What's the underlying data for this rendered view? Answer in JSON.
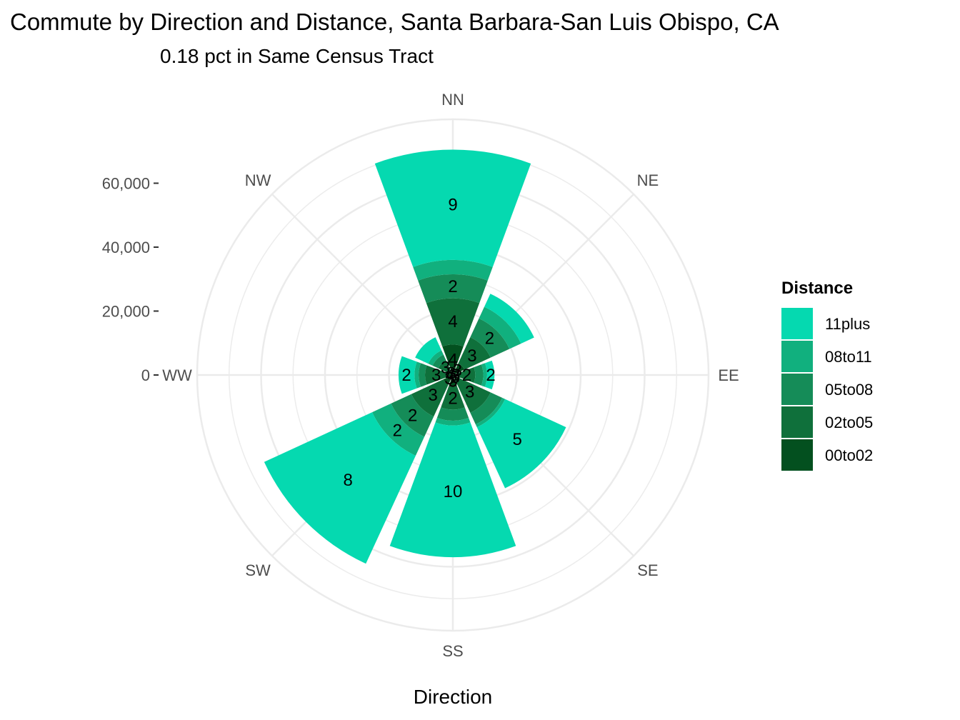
{
  "chart_data": {
    "type": "bar",
    "polar": true,
    "title": "Commute by Direction and Distance, Santa Barbara-San Luis Obispo, CA",
    "subtitle": "0.18 pct in Same Census Tract",
    "xlabel": "Direction",
    "ylabel": "",
    "categories": [
      "NN",
      "NE",
      "EE",
      "SE",
      "SS",
      "SW",
      "WW",
      "NW"
    ],
    "y_ticks": [
      0,
      20000,
      40000,
      60000
    ],
    "y_tick_labels": [
      "0",
      "20,000",
      "40,000",
      "60,000"
    ],
    "ylim": [
      0,
      80000
    ],
    "stack_order": [
      "00to02",
      "02to05",
      "05to08",
      "08to11",
      "11plus"
    ],
    "series": [
      {
        "name": "00to02",
        "color": "#03501f",
        "values": [
          9500,
          4000,
          1700,
          2000,
          3800,
          3300,
          1700,
          1500
        ],
        "labels": [
          "4",
          "3",
          "3",
          "3",
          "3",
          "3",
          "4",
          "3"
        ]
      },
      {
        "name": "02to05",
        "color": "#0f703b",
        "values": [
          14500,
          9000,
          5300,
          11000,
          7000,
          11000,
          7000,
          3500
        ],
        "labels": [
          "4",
          "3",
          "2",
          "3",
          "2",
          "3",
          "3",
          "3"
        ]
      },
      {
        "name": "05to08",
        "color": "#158c58",
        "values": [
          7500,
          6500,
          2500,
          4000,
          3500,
          7000,
          2000,
          2000
        ],
        "labels": [
          "2",
          "2",
          "",
          "",
          "",
          "2",
          "",
          ""
        ]
      },
      {
        "name": "08to11",
        "color": "#11b07e",
        "values": [
          4500,
          4000,
          1200,
          1000,
          1500,
          6500,
          1300,
          1500
        ],
        "labels": [
          "",
          "",
          "",
          "",
          "",
          "2",
          "",
          ""
        ]
      },
      {
        "name": "11plus",
        "color": "#05d9b0",
        "values": [
          34500,
          4500,
          2300,
          21000,
          41200,
          37200,
          5000,
          4500
        ],
        "labels": [
          "9",
          "",
          "2",
          "5",
          "10",
          "8",
          "2",
          ""
        ]
      }
    ],
    "legend": {
      "title": "Distance",
      "position": "right",
      "entries": [
        "11plus",
        "08to11",
        "05to08",
        "02to05",
        "00to02"
      ]
    }
  }
}
